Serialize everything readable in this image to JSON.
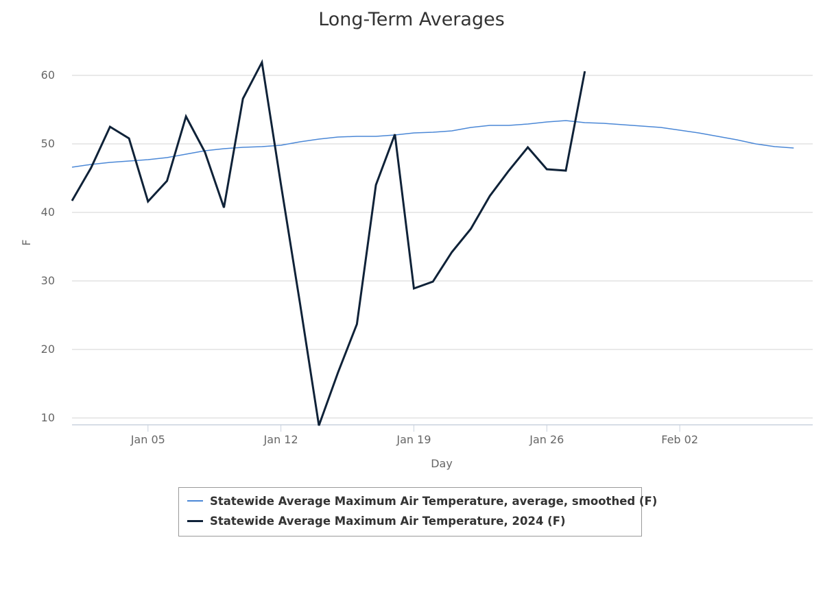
{
  "colors": {
    "average": "#4a87d6",
    "current": "#0f2238"
  },
  "chart_data": {
    "type": "line",
    "title": "Long-Term Averages",
    "xlabel": "Day",
    "ylabel": "F",
    "x_type": "date",
    "x_range": [
      "2024-01-01",
      "2024-02-09"
    ],
    "ylim": [
      9,
      63
    ],
    "y_ticks": [
      10,
      20,
      30,
      40,
      50,
      60
    ],
    "x_ticks": [
      {
        "date": "2024-01-05",
        "label": "Jan 05"
      },
      {
        "date": "2024-01-12",
        "label": "Jan 12"
      },
      {
        "date": "2024-01-19",
        "label": "Jan 19"
      },
      {
        "date": "2024-01-26",
        "label": "Jan 26"
      },
      {
        "date": "2024-02-02",
        "label": "Feb 02"
      }
    ],
    "grid": true,
    "legend_position": "bottom",
    "series": [
      {
        "name": "Statewide Average Maximum Air Temperature, average, smoothed (F)",
        "color_key": "average",
        "points": [
          [
            "2024-01-01",
            46.6
          ],
          [
            "2024-01-02",
            47.0
          ],
          [
            "2024-01-03",
            47.3
          ],
          [
            "2024-01-04",
            47.5
          ],
          [
            "2024-01-05",
            47.7
          ],
          [
            "2024-01-06",
            48.0
          ],
          [
            "2024-01-07",
            48.5
          ],
          [
            "2024-01-08",
            49.0
          ],
          [
            "2024-01-09",
            49.3
          ],
          [
            "2024-01-10",
            49.5
          ],
          [
            "2024-01-11",
            49.6
          ],
          [
            "2024-01-12",
            49.8
          ],
          [
            "2024-01-13",
            50.3
          ],
          [
            "2024-01-14",
            50.7
          ],
          [
            "2024-01-15",
            51.0
          ],
          [
            "2024-01-16",
            51.1
          ],
          [
            "2024-01-17",
            51.1
          ],
          [
            "2024-01-18",
            51.3
          ],
          [
            "2024-01-19",
            51.6
          ],
          [
            "2024-01-20",
            51.7
          ],
          [
            "2024-01-21",
            51.9
          ],
          [
            "2024-01-22",
            52.4
          ],
          [
            "2024-01-23",
            52.7
          ],
          [
            "2024-01-24",
            52.7
          ],
          [
            "2024-01-25",
            52.9
          ],
          [
            "2024-01-26",
            53.2
          ],
          [
            "2024-01-27",
            53.4
          ],
          [
            "2024-01-28",
            53.1
          ],
          [
            "2024-01-29",
            53.0
          ],
          [
            "2024-01-30",
            52.8
          ],
          [
            "2024-01-31",
            52.6
          ],
          [
            "2024-02-01",
            52.4
          ],
          [
            "2024-02-02",
            52.0
          ],
          [
            "2024-02-03",
            51.6
          ],
          [
            "2024-02-04",
            51.1
          ],
          [
            "2024-02-05",
            50.6
          ],
          [
            "2024-02-06",
            50.0
          ],
          [
            "2024-02-07",
            49.6
          ],
          [
            "2024-02-08",
            49.4
          ]
        ]
      },
      {
        "name": "Statewide Average Maximum Air Temperature, 2024 (F)",
        "color_key": "current",
        "points": [
          [
            "2024-01-01",
            41.7
          ],
          [
            "2024-01-02",
            46.5
          ],
          [
            "2024-01-03",
            52.5
          ],
          [
            "2024-01-04",
            50.8
          ],
          [
            "2024-01-05",
            41.6
          ],
          [
            "2024-01-06",
            44.6
          ],
          [
            "2024-01-07",
            54.0
          ],
          [
            "2024-01-08",
            48.8
          ],
          [
            "2024-01-09",
            40.7
          ],
          [
            "2024-01-10",
            56.6
          ],
          [
            "2024-01-11",
            61.9
          ],
          [
            "2024-01-12",
            44.1
          ],
          [
            "2024-01-13",
            26.8
          ],
          [
            "2024-01-14",
            8.9
          ],
          [
            "2024-01-15",
            16.6
          ],
          [
            "2024-01-16",
            23.7
          ],
          [
            "2024-01-17",
            44.0
          ],
          [
            "2024-01-18",
            51.4
          ],
          [
            "2024-01-19",
            28.9
          ],
          [
            "2024-01-20",
            29.9
          ],
          [
            "2024-01-21",
            34.2
          ],
          [
            "2024-01-22",
            37.6
          ],
          [
            "2024-01-23",
            42.4
          ],
          [
            "2024-01-24",
            46.1
          ],
          [
            "2024-01-25",
            49.5
          ],
          [
            "2024-01-26",
            46.3
          ],
          [
            "2024-01-27",
            46.1
          ],
          [
            "2024-01-28",
            60.6
          ]
        ]
      }
    ]
  }
}
